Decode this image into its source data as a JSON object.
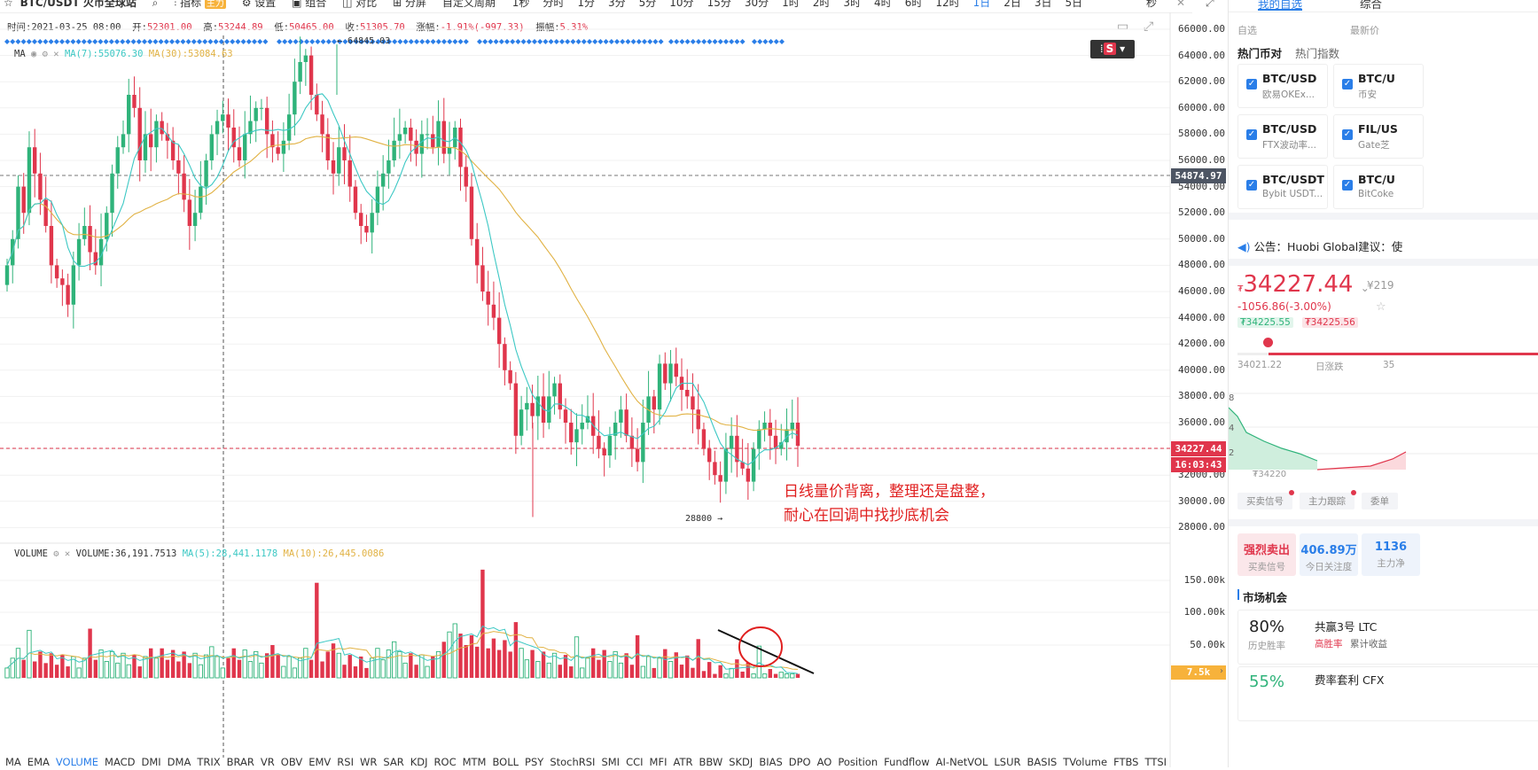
{
  "toolbar": {
    "symbol": "BTC/USDT 火币全球站",
    "items": [
      {
        "label": "指标",
        "tag": "主力"
      },
      {
        "label": "设置"
      },
      {
        "label": "组合"
      },
      {
        "label": "对比"
      },
      {
        "label": "分屏"
      }
    ],
    "period_menu": "自定义周期",
    "periods": [
      "1秒",
      "分时",
      "1分",
      "3分",
      "5分",
      "10分",
      "15分",
      "30分",
      "1时",
      "2时",
      "3时",
      "4时",
      "6时",
      "12时",
      "1日",
      "2日",
      "3日",
      "5日"
    ],
    "active_period": "1日",
    "right_label": "秒"
  },
  "info": {
    "time_label": "时间:",
    "time": "2021-03-25 08:00",
    "open_label": "开:",
    "open": "52301.00",
    "high_label": "高:",
    "high": "53244.89",
    "low_label": "低:",
    "low": "50465.00",
    "close_label": "收:",
    "close": "51305.70",
    "change_label": "涨幅:",
    "change": "-1.91%(-997.33)",
    "amp_label": "振幅:",
    "amp": "5.31%"
  },
  "ma_indicator": {
    "name": "MA",
    "ma7": "MA(7):55076.30",
    "ma30": "MA(30):53084.63"
  },
  "volume_indicator": {
    "name": "VOLUME",
    "volume": "VOLUME:36,191.7513",
    "ma5": "MA(5):28,441.1178",
    "ma10": "MA(10):26,445.0086"
  },
  "price_axis": [
    "66000.00",
    "64000.00",
    "62000.00",
    "60000.00",
    "58000.00",
    "56000.00",
    "54000.00",
    "52000.00",
    "50000.00",
    "48000.00",
    "46000.00",
    "44000.00",
    "42000.00",
    "40000.00",
    "38000.00",
    "36000.00",
    "34000.00",
    "32000.00",
    "30000.00",
    "28000.00"
  ],
  "volume_axis": [
    "150.00k",
    "100.00k",
    "50.00k"
  ],
  "price_tags": {
    "crosshair_price": "54874.97",
    "last_price": "34227.44",
    "countdown": "16:03:43",
    "volume_tag": "7.5k"
  },
  "annotations": {
    "high_marker": "64845.03",
    "low_marker": "28800",
    "comment_line1": "日线量价背离，整理还是盘整，",
    "comment_line2": "耐心在回调中找抄底机会"
  },
  "indicator_tabs": [
    "MA",
    "EMA",
    "VOLUME",
    "MACD",
    "DMI",
    "DMA",
    "TRIX",
    "BRAR",
    "VR",
    "OBV",
    "EMV",
    "RSI",
    "WR",
    "SAR",
    "KDJ",
    "ROC",
    "MTM",
    "BOLL",
    "PSY",
    "StochRSI",
    "SMI",
    "CCI",
    "MFI",
    "ATR",
    "BBW",
    "SKDJ",
    "BIAS",
    "DPO",
    "AO",
    "Position",
    "Fundflow",
    "AI-NetVOL",
    "LSUR",
    "BASIS",
    "TVolume",
    "FTBS",
    "TTSI"
  ],
  "active_indicator_tab": "VOLUME",
  "right_panel": {
    "tabs": [
      "我的自选",
      "综合"
    ],
    "header_left": "自选",
    "header_right": "最新价",
    "subtabs": [
      "热门币对",
      "热门指数"
    ],
    "cards": [
      {
        "symbol": "BTC/USD",
        "exchange": "欧易OKEx..."
      },
      {
        "symbol": "BTC/U",
        "exchange": "币安"
      },
      {
        "symbol": "BTC/USD",
        "exchange": "FTX波动率..."
      },
      {
        "symbol": "FIL/US",
        "exchange": "Gate芝"
      },
      {
        "symbol": "BTC/USDT",
        "exchange": "Bybit USDT..."
      },
      {
        "symbol": "BTC/U",
        "exchange": "BitCoke"
      }
    ],
    "notice": "公告：Huobi Global建议：使",
    "price": "34227.44",
    "price_cny": "¥219",
    "change": "-1056.86(-3.00%)",
    "bid": "₮34225.55",
    "ask": "₮34225.56",
    "range_low": "34021.22",
    "range_label": "日涨跌",
    "range_high": "35",
    "mini_chart_label": "₮34220",
    "signal_tabs": [
      "买卖信号",
      "主力跟踪",
      "委单"
    ],
    "stats": [
      {
        "value": "强烈卖出",
        "label": "买卖信号"
      },
      {
        "value": "406.89万",
        "label": "今日关注度"
      },
      {
        "value": "1136",
        "label": "主力净"
      }
    ],
    "market_title": "市场机会",
    "opportunities": [
      {
        "pct": "80%",
        "pct_label": "历史胜率",
        "name": "共赢3号 LTC",
        "tag": "高胜率",
        "sub": "累计收益"
      },
      {
        "pct": "55%",
        "pct_label": "",
        "name": "费率套利 CFX",
        "tag": "",
        "sub": ""
      }
    ]
  },
  "colors": {
    "up": "#2fb37a",
    "down": "#e0364c",
    "ma7": "#3cc8c4",
    "ma30": "#e1b244",
    "accent": "#2a7ee8",
    "annotation": "#e02020"
  }
}
